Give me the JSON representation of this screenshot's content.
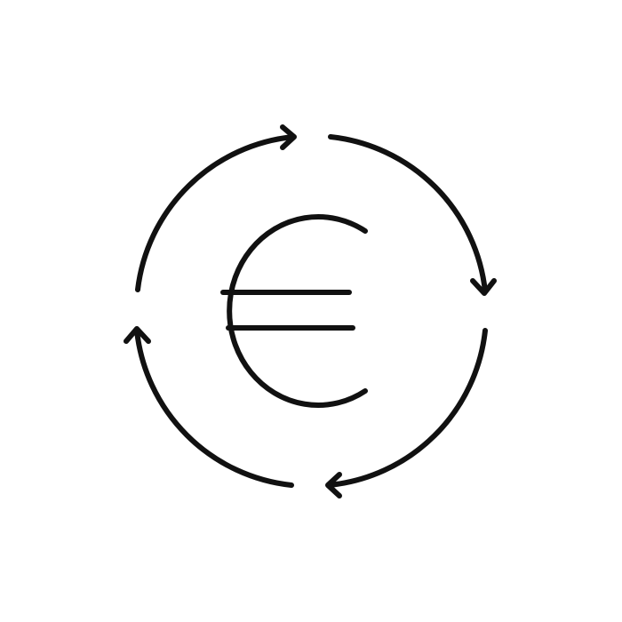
{
  "icon": {
    "name": "euro-exchange-cycle-icon",
    "symbol": "euro-sign-icon",
    "arrows": "circular-arrows-icon",
    "stroke_color": "#111111",
    "background_color": "#ffffff"
  }
}
